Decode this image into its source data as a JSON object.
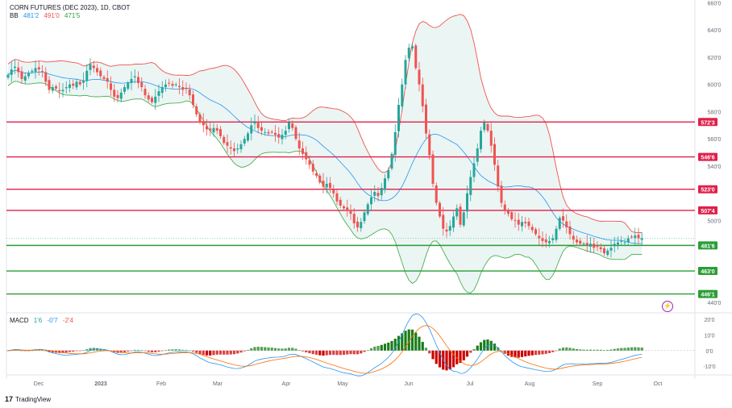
{
  "legend": {
    "title": "CORN FUTURES (DEC 2023), 1D, CBOT",
    "bb_label": "BB",
    "bb_values": [
      "481'2",
      "491'0",
      "471'5"
    ],
    "macd_label": "MACD",
    "macd_values": [
      "1'6",
      "-0'7",
      "-2'4"
    ]
  },
  "brand": {
    "logo": "17",
    "name": "TradingView"
  },
  "colors": {
    "up": "#26a69a",
    "down": "#ef5350",
    "bb_upper": "#ef5350",
    "bb_lower": "#4caf50",
    "bb_basis": "#2196f3",
    "bb_fill": "#e9f4f3",
    "resistance": "#e0204a",
    "support": "#2a9d34",
    "macd_pos": "#26a69a",
    "macd_neg": "#ef5350",
    "macd_line": "#2196f3",
    "signal_line": "#ff6d00",
    "bar_up": "#1a7d1a",
    "bar_down": "#cc0000"
  },
  "chart_data": [
    {
      "type": "candlestick",
      "title": "CORN FUTURES (DEC 2023), 1D, CBOT",
      "x_ticks": [
        "Dec",
        "2023",
        "Feb",
        "Mar",
        "Apr",
        "May",
        "Jun",
        "Jul",
        "Aug",
        "Sep",
        "Oct"
      ],
      "y_ticks": [
        "440'0",
        "460'0",
        "480'0",
        "500'0",
        "520'0",
        "540'0",
        "560'0",
        "580'0",
        "600'0",
        "620'0",
        "640'0",
        "660'0"
      ],
      "y_ticks_values": [
        440,
        460,
        480,
        500,
        520,
        540,
        560,
        580,
        600,
        620,
        640,
        660
      ],
      "ylim": [
        434,
        662
      ],
      "horizontal_levels": [
        {
          "label": "572'3",
          "value": 572.4,
          "kind": "resistance"
        },
        {
          "label": "546'6",
          "value": 546.75,
          "kind": "resistance"
        },
        {
          "label": "523'0",
          "value": 523,
          "kind": "resistance"
        },
        {
          "label": "507'4",
          "value": 507.5,
          "kind": "resistance"
        },
        {
          "label": "481'6",
          "value": 481.75,
          "kind": "support"
        },
        {
          "label": "463'0",
          "value": 463,
          "kind": "support"
        },
        {
          "label": "446'1",
          "value": 446.1,
          "kind": "support"
        }
      ],
      "close_series": [
        607,
        611,
        613,
        609,
        604,
        606,
        608,
        610,
        612,
        611,
        609,
        602,
        596,
        598,
        597,
        595,
        596,
        598,
        600,
        599,
        602,
        600,
        603,
        610,
        615,
        612,
        609,
        606,
        604,
        602,
        596,
        591,
        590,
        594,
        598,
        601,
        604,
        606,
        601,
        598,
        592,
        589,
        587,
        591,
        595,
        598,
        600,
        601,
        599,
        600,
        598,
        596,
        597,
        592,
        585,
        578,
        572,
        570,
        567,
        566,
        568,
        566,
        562,
        557,
        555,
        553,
        551,
        553,
        556,
        560,
        564,
        570,
        573,
        568,
        566,
        565,
        564,
        565,
        563,
        561,
        563,
        566,
        572,
        568,
        560,
        553,
        549,
        545,
        541,
        536,
        533,
        528,
        525,
        527,
        524,
        520,
        514,
        511,
        509,
        508,
        505,
        498,
        495,
        499,
        506,
        512,
        517,
        521,
        518,
        524,
        531,
        537,
        549,
        565,
        585,
        600,
        618,
        627,
        628,
        612,
        600,
        584,
        564,
        548,
        527,
        513,
        503,
        494,
        492,
        496,
        503,
        509,
        497,
        506,
        520,
        532,
        542,
        553,
        566,
        572,
        566,
        555,
        541,
        525,
        513,
        507,
        505,
        501,
        500,
        497,
        499,
        498,
        496,
        493,
        490,
        487,
        485,
        484,
        485,
        487,
        494,
        502,
        500,
        495,
        490,
        486,
        484,
        483,
        483,
        482,
        483,
        480,
        481,
        479,
        476,
        478,
        480,
        483,
        484,
        485,
        484,
        487,
        488,
        489,
        487,
        487
      ],
      "ma_window": 20,
      "bb_stddev": 2
    },
    {
      "type": "histogram",
      "title": "MACD",
      "y_ticks": [
        "-10'0",
        "0'0",
        "10'0",
        "20'0"
      ],
      "y_ticks_values": [
        -10,
        0,
        10,
        20
      ],
      "ylim": [
        -14,
        22
      ],
      "values": "derived from close_series: MACD 12/26, signal 9"
    }
  ]
}
